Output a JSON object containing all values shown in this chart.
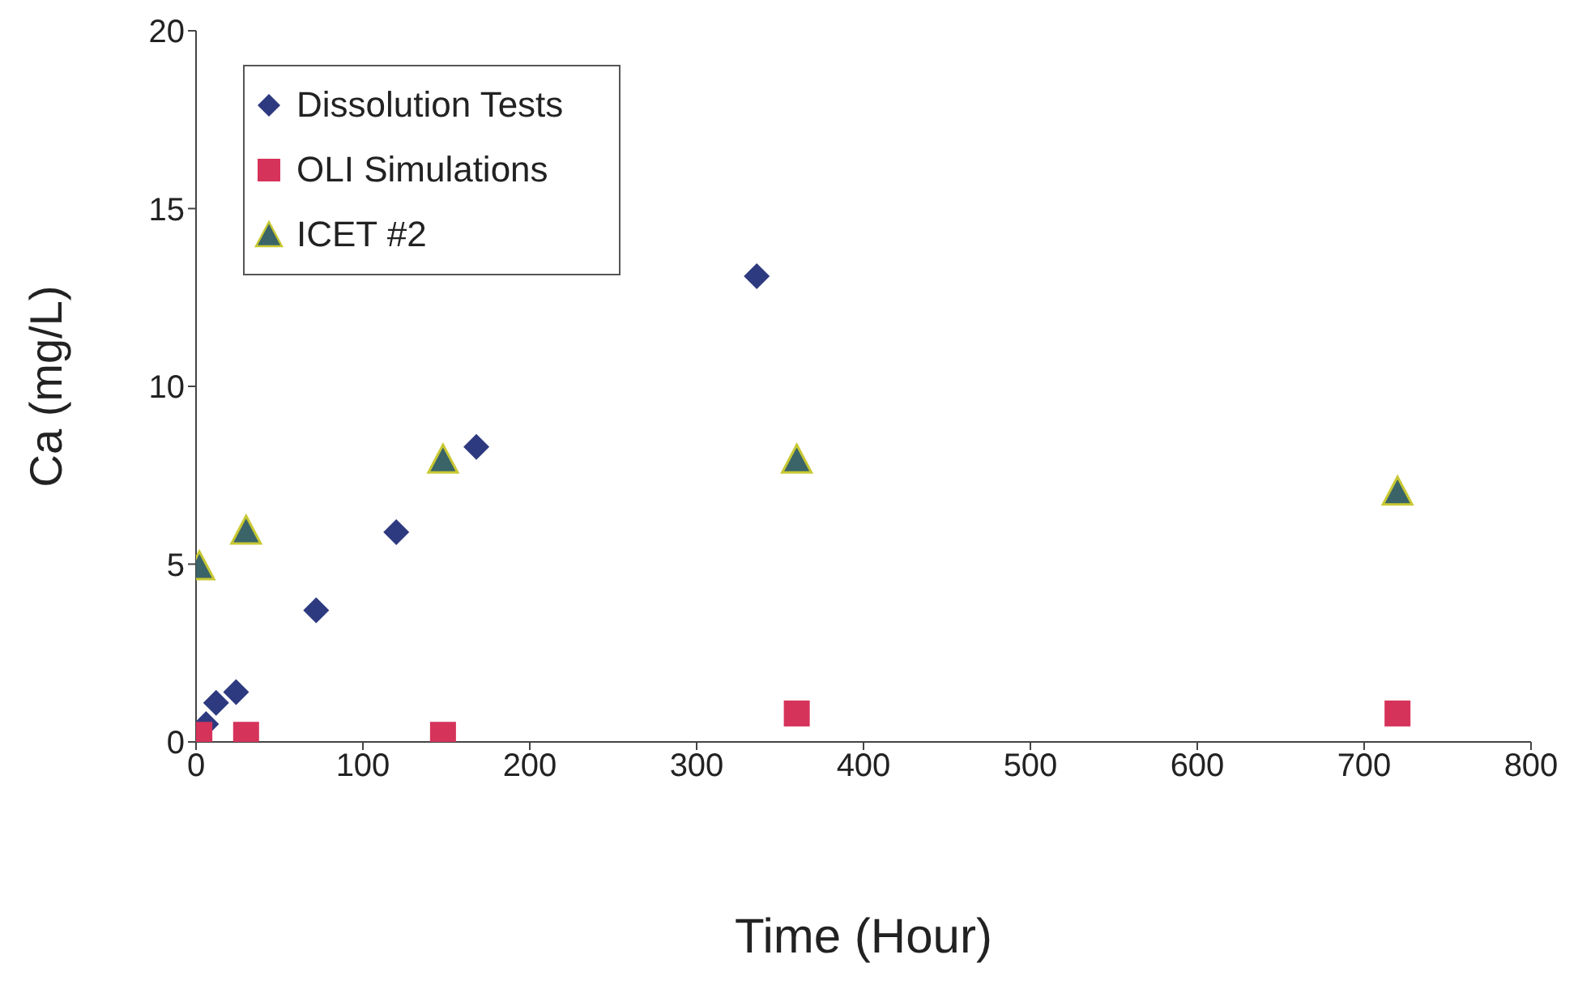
{
  "chart_data": {
    "type": "scatter",
    "xlabel": "Time (Hour)",
    "ylabel": "Ca (mg/L)",
    "xlim": [
      0,
      800
    ],
    "xticks": [
      0,
      100,
      200,
      300,
      400,
      500,
      600,
      700,
      800
    ],
    "ylim": [
      0,
      20
    ],
    "yticks": [
      0,
      5,
      10,
      15,
      20
    ],
    "grid": false,
    "legend": "top left",
    "series": [
      {
        "name": "Dissolution Tests",
        "color": "#2e3a80",
        "marker": "diamond",
        "x": [
          6,
          12,
          24,
          72,
          120,
          168,
          336
        ],
        "values": [
          0.5,
          1.1,
          1.4,
          3.7,
          5.9,
          8.3,
          13.1
        ]
      },
      {
        "name": "OLI Simulations",
        "color": "#d6335a",
        "marker": "square",
        "x": [
          2,
          30,
          148,
          360,
          720
        ],
        "values": [
          0.2,
          0.2,
          0.2,
          0.8,
          0.8
        ]
      },
      {
        "name": "ICET #2",
        "color": "#3a6468",
        "marker": "triangle",
        "x": [
          2,
          30,
          148,
          360,
          720
        ],
        "values": [
          4.9,
          5.9,
          7.9,
          7.9,
          7.0
        ]
      }
    ]
  }
}
